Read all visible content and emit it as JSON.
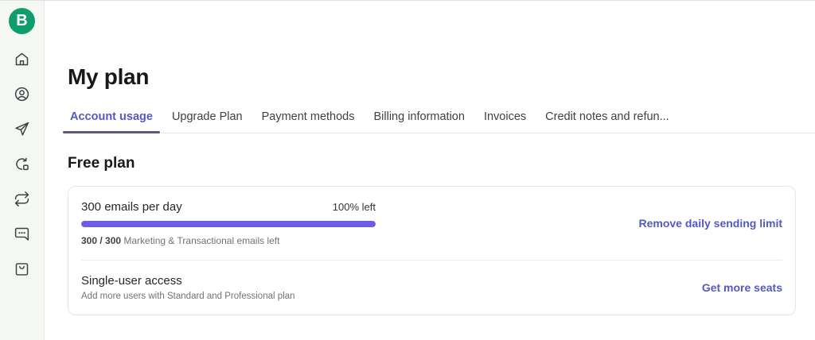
{
  "theme": {
    "brand_green": "#0f9d6d",
    "accent_indigo": "#5459c0",
    "progress_purple": "#6d5ce6",
    "active_tab_underline": "#5b5784"
  },
  "sidebar": {
    "logo_letter": "B",
    "items": [
      {
        "icon": "home-icon"
      },
      {
        "icon": "contacts-icon"
      },
      {
        "icon": "campaigns-send-icon"
      },
      {
        "icon": "automation-icon"
      },
      {
        "icon": "transactional-repeat-icon"
      },
      {
        "icon": "conversations-chat-icon"
      },
      {
        "icon": "ecommerce-bag-icon"
      }
    ]
  },
  "header": {
    "title": "My plan"
  },
  "tabs": [
    {
      "label": "Account usage",
      "active": true
    },
    {
      "label": "Upgrade Plan",
      "active": false
    },
    {
      "label": "Payment methods",
      "active": false
    },
    {
      "label": "Billing information",
      "active": false
    },
    {
      "label": "Invoices",
      "active": false
    },
    {
      "label": "Credit notes and refun...",
      "active": false
    }
  ],
  "plan": {
    "heading": "Free plan",
    "email_quota": {
      "title": "300 emails per day",
      "percent_left_label": "100% left",
      "percent_left_value": 100,
      "usage_bold": "300 / 300",
      "usage_rest": " Marketing & Transactional emails left",
      "action": "Remove daily sending limit"
    },
    "seats": {
      "title": "Single-user access",
      "subtitle": "Add more users with Standard and Professional plan",
      "action": "Get more seats"
    }
  }
}
